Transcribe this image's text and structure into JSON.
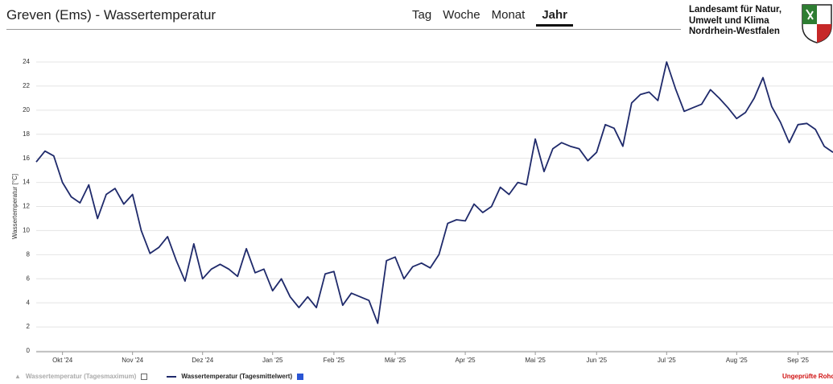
{
  "header": {
    "title": "Greven (Ems) - Wassertemperatur",
    "tabs": [
      {
        "label": "Tag",
        "active": false
      },
      {
        "label": "Woche",
        "active": false
      },
      {
        "label": "Monat",
        "active": false
      },
      {
        "label": "Jahr",
        "active": true
      }
    ],
    "agency": [
      "Landesamt für Natur,",
      "Umwelt und Klima",
      "Nordrhein-Westfalen"
    ]
  },
  "chart_data": {
    "type": "line",
    "y_label": "Wassertemperatur [°C]",
    "categories": [
      null,
      null,
      null,
      "Okt '24",
      null,
      null,
      null,
      null,
      null,
      null,
      null,
      "Nov '24",
      null,
      null,
      null,
      null,
      null,
      null,
      null,
      "Dez '24",
      null,
      null,
      null,
      null,
      null,
      null,
      null,
      "Jan '25",
      null,
      null,
      null,
      null,
      null,
      null,
      "Feb '25",
      null,
      null,
      null,
      null,
      null,
      null,
      "Mär '25",
      null,
      null,
      null,
      null,
      null,
      null,
      null,
      "Apr '25",
      null,
      null,
      null,
      null,
      null,
      null,
      null,
      "Mai '25",
      null,
      null,
      null,
      null,
      null,
      null,
      "Jun '25",
      null,
      null,
      null,
      null,
      null,
      null,
      null,
      "Jul '25",
      null,
      null,
      null,
      null,
      null,
      null,
      null,
      "Aug '25",
      null,
      null,
      null,
      null,
      null,
      null,
      "Sep '25",
      null,
      null,
      null,
      null
    ],
    "series": [
      {
        "color": "#1f2a6b",
        "values": [
          15.7,
          16.6,
          16.2,
          14,
          12.8,
          12.3,
          13.8,
          11,
          13,
          13.5,
          12.2,
          13,
          10,
          8.1,
          8.6,
          9.5,
          7.5,
          5.8,
          8.9,
          6,
          6.8,
          7.2,
          6.8,
          6.2,
          8.5,
          6.5,
          6.8,
          5,
          6,
          4.5,
          3.6,
          4.5,
          3.6,
          6.4,
          6.6,
          3.8,
          4.8,
          4.5,
          4.2,
          2.3,
          7.5,
          7.8,
          6,
          7,
          7.3,
          6.9,
          8,
          10.6,
          10.9,
          10.8,
          12.2,
          11.5,
          12,
          13.6,
          13,
          14,
          13.8,
          17.6,
          14.9,
          16.8,
          17.3,
          17,
          16.8,
          15.8,
          16.5,
          18.8,
          18.5,
          17,
          20.6,
          21.3,
          21.5,
          20.8,
          24,
          21.8,
          19.9,
          20.2,
          20.5,
          21.7,
          21,
          20.2,
          19.3,
          19.8,
          21,
          22.7,
          20.3,
          19,
          17.3,
          18.8,
          18.9,
          18.4,
          17,
          16.5
        ]
      }
    ],
    "legend": [
      {
        "name": "Wassertemperatur (Tagesmaximum)",
        "checked": false
      },
      {
        "name": "Wassertemperatur (Tagesmittelwert)",
        "checked": true
      }
    ],
    "note": "Ungeprüfte Rohdaten",
    "ylim": [
      0,
      24
    ],
    "yticks": [
      0,
      2,
      4,
      6,
      8,
      10,
      12,
      14,
      16,
      18,
      20,
      22,
      24
    ],
    "grid": true
  }
}
